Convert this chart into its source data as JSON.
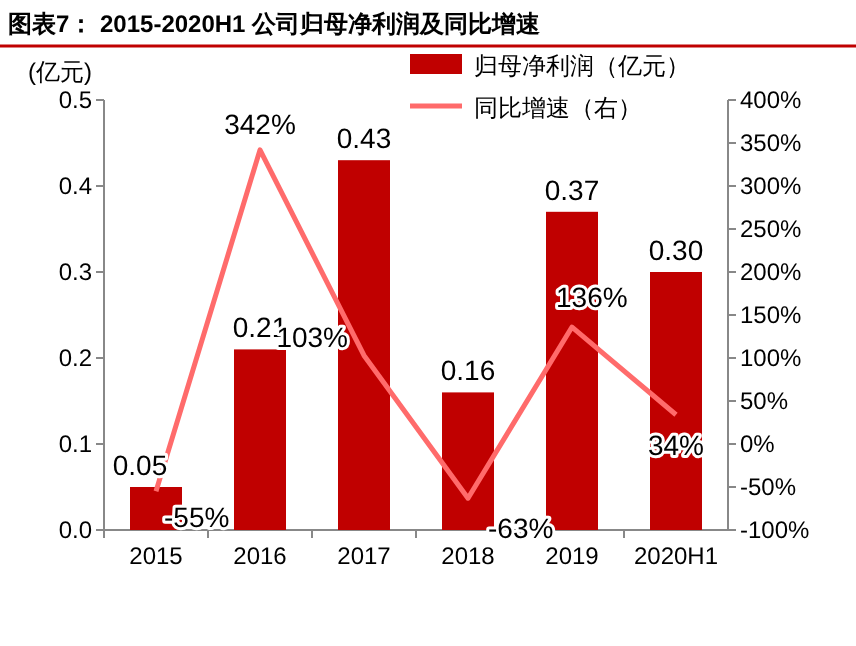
{
  "chart_data": {
    "type": "bar",
    "title": "图表7：  2015-2020H1 公司归母净利润及同比增速",
    "ylabel": "(亿元)",
    "categories": [
      "2015",
      "2016",
      "2017",
      "2018",
      "2019",
      "2020H1"
    ],
    "series": [
      {
        "name": "归母净利润（亿元）",
        "type": "bar",
        "color": "#c00000",
        "values": [
          0.05,
          0.21,
          0.43,
          0.16,
          0.37,
          0.3
        ],
        "value_labels": [
          "0.05",
          "0.21",
          "0.43",
          "0.16",
          "0.37",
          "0.30"
        ]
      },
      {
        "name": "同比增速（右）",
        "type": "line",
        "axis": "y2",
        "color": "#ff6b6b",
        "values": [
          -55,
          342,
          103,
          -63,
          136,
          34
        ],
        "value_labels": [
          "-55%",
          "342%",
          "103%",
          "-63%",
          "136%",
          "34%"
        ]
      }
    ],
    "ylim": [
      0,
      0.5
    ],
    "yticks": [
      {
        "value": 0,
        "label": "0.0"
      },
      {
        "value": 0.1,
        "label": "0.1"
      },
      {
        "value": 0.2,
        "label": "0.2"
      },
      {
        "value": 0.3,
        "label": "0.3"
      },
      {
        "value": 0.4,
        "label": "0.4"
      },
      {
        "value": 0.5,
        "label": "0.5"
      }
    ],
    "y2lim": [
      -100,
      400
    ],
    "y2ticks": [
      {
        "value": -100,
        "label": "-100%"
      },
      {
        "value": -50,
        "label": "-50%"
      },
      {
        "value": 0,
        "label": "0%"
      },
      {
        "value": 50,
        "label": "50%"
      },
      {
        "value": 100,
        "label": "100%"
      },
      {
        "value": 150,
        "label": "150%"
      },
      {
        "value": 200,
        "label": "200%"
      },
      {
        "value": 250,
        "label": "250%"
      },
      {
        "value": 300,
        "label": "300%"
      },
      {
        "value": 350,
        "label": "350%"
      },
      {
        "value": 400,
        "label": "400%"
      }
    ],
    "legend": "top right",
    "grid": false,
    "marker": "none"
  }
}
